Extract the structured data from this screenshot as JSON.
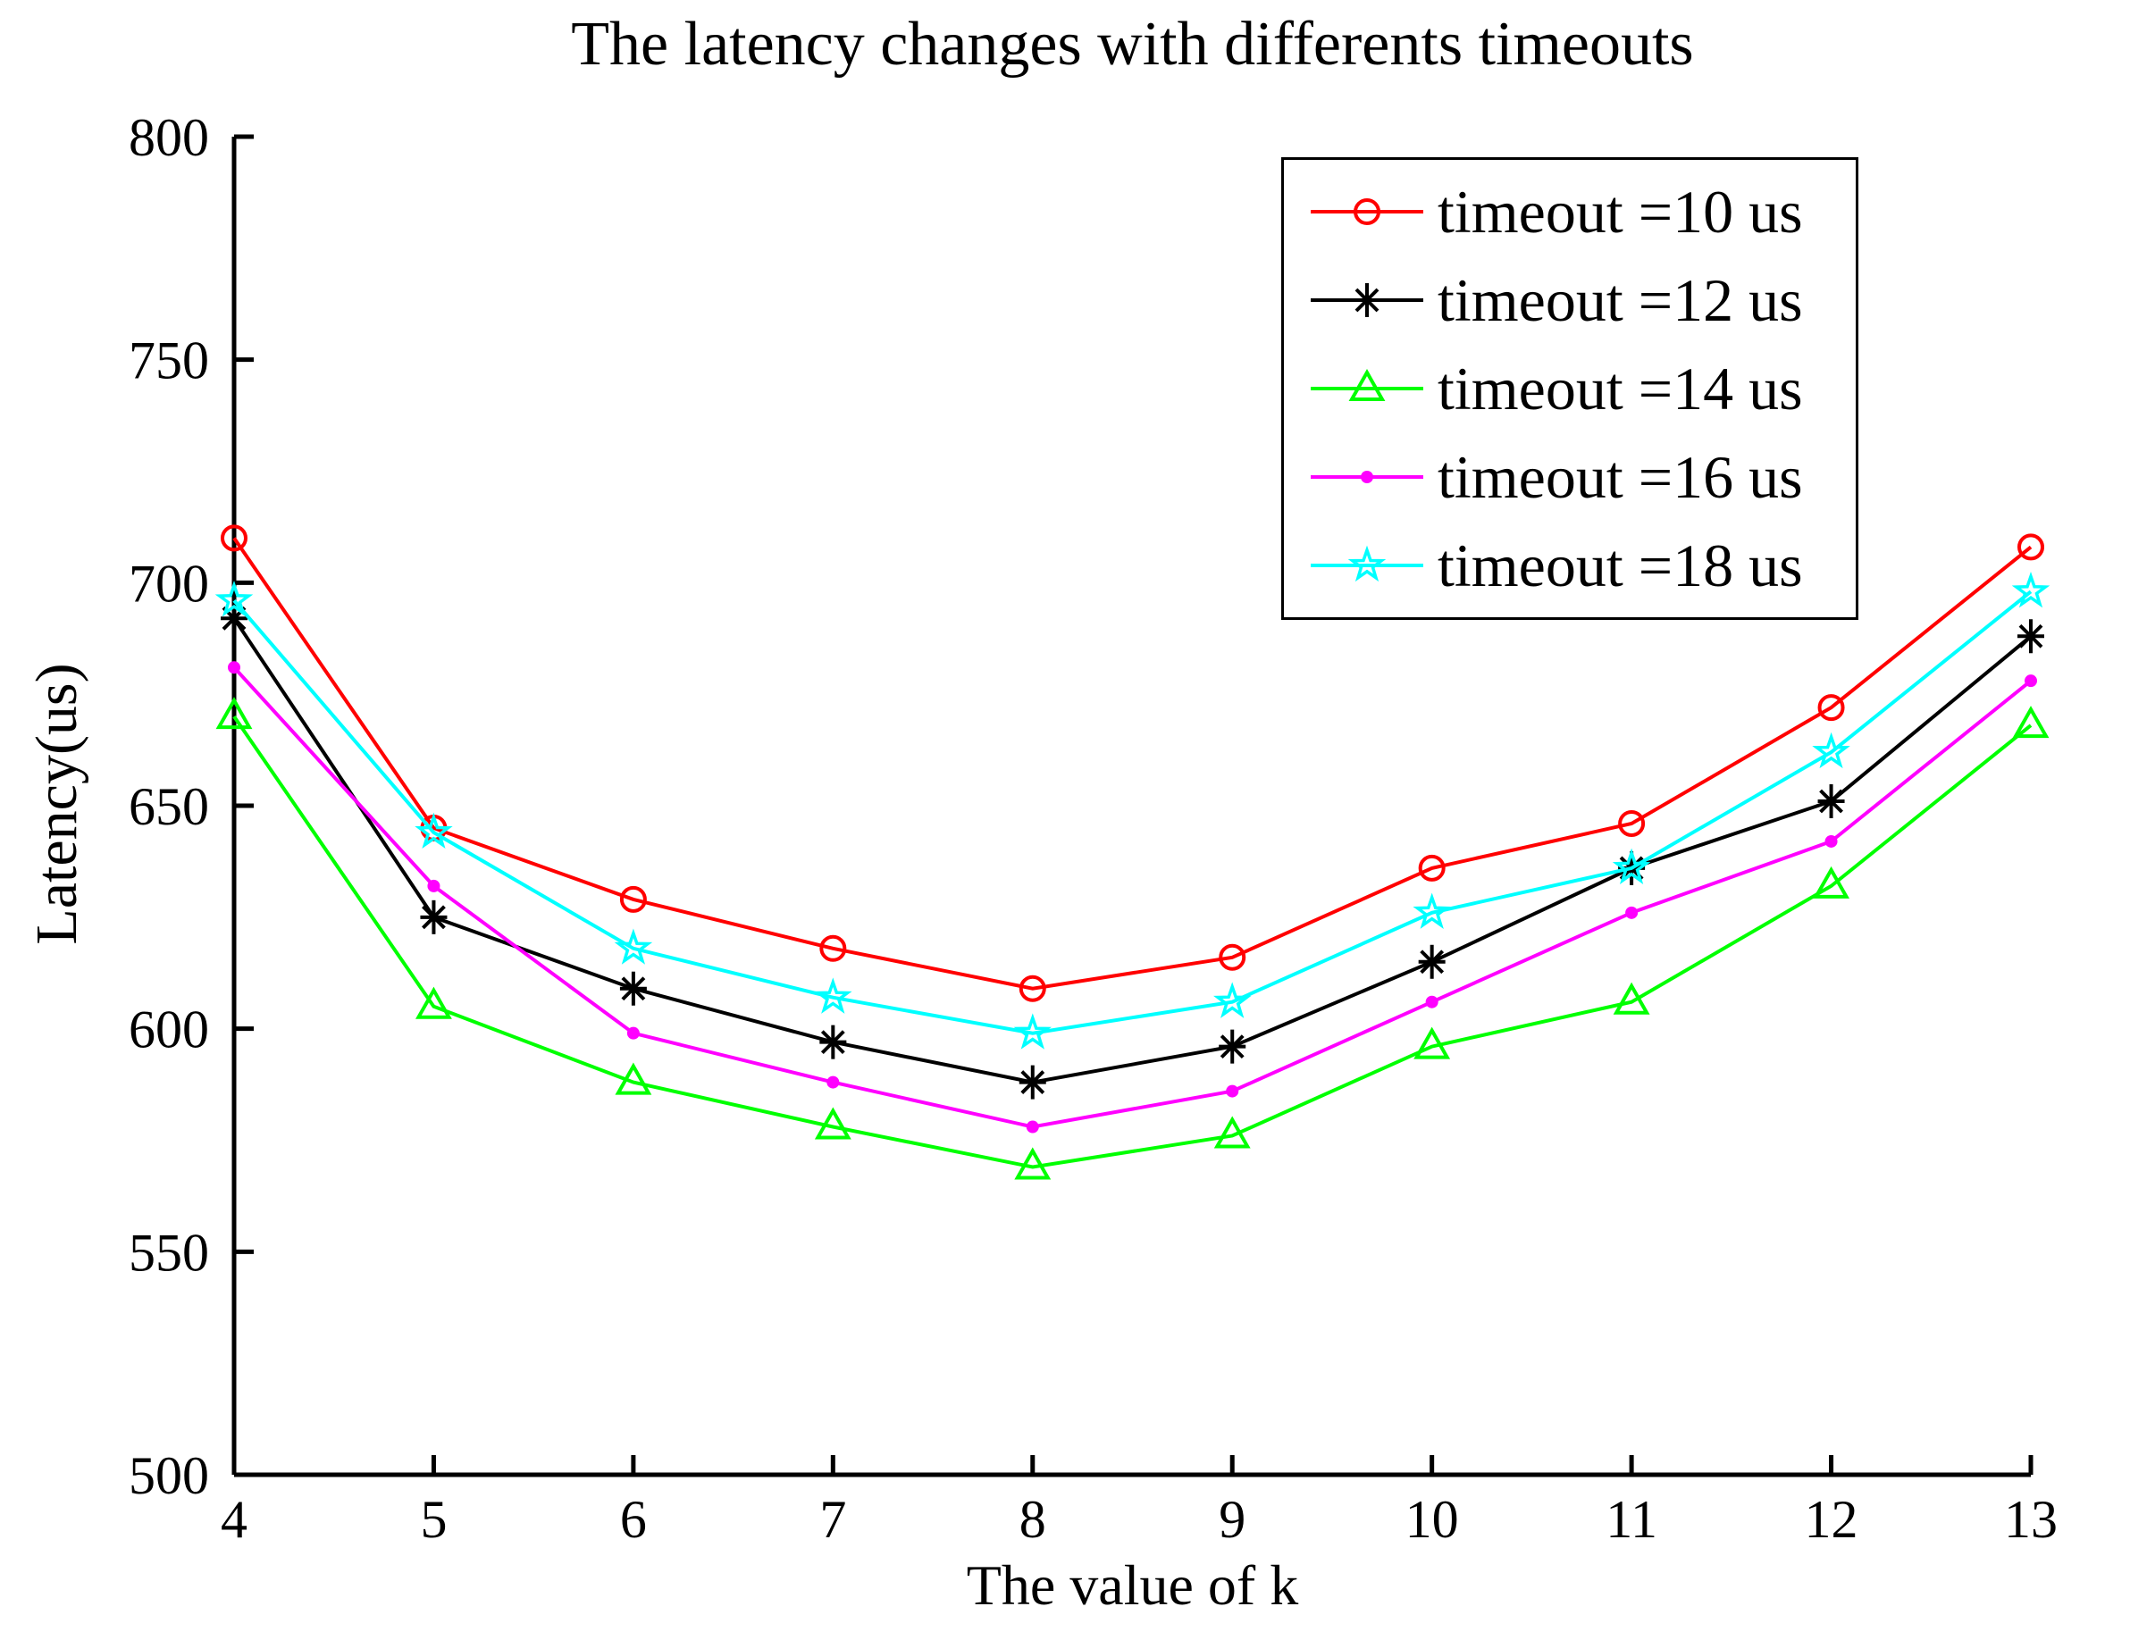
{
  "figure": {
    "title": "The latency changes with differents timeouts",
    "xlabel": "The value of k",
    "ylabel": "Latency(us)"
  },
  "chart_data": {
    "type": "line",
    "title": "The latency changes with differents timeouts",
    "xlabel": "The value of k",
    "ylabel": "Latency(us)",
    "x": [
      4,
      5,
      6,
      7,
      8,
      9,
      10,
      11,
      12,
      13
    ],
    "xlim": [
      4,
      13
    ],
    "ylim": [
      500,
      800
    ],
    "xticks": [
      4,
      5,
      6,
      7,
      8,
      9,
      10,
      11,
      12,
      13
    ],
    "yticks": [
      500,
      550,
      600,
      650,
      700,
      750,
      800
    ],
    "grid": false,
    "box": false,
    "legend_position": "top-right",
    "axis_color": "#000000",
    "series": [
      {
        "name": "timeout =10 us",
        "color": "#ff0000",
        "marker": "circle",
        "values": [
          710,
          645,
          629,
          618,
          609,
          616,
          636,
          646,
          672,
          708
        ]
      },
      {
        "name": "timeout =12 us",
        "color": "#000000",
        "marker": "asterisk",
        "values": [
          692,
          625,
          609,
          597,
          588,
          596,
          615,
          636,
          651,
          688
        ]
      },
      {
        "name": "timeout =14 us",
        "color": "#00ff00",
        "marker": "triangle",
        "values": [
          670,
          605,
          588,
          578,
          569,
          576,
          596,
          606,
          632,
          668
        ]
      },
      {
        "name": "timeout =16 us",
        "color": "#ff00ff",
        "marker": "dot",
        "values": [
          681,
          632,
          599,
          588,
          578,
          586,
          606,
          626,
          642,
          678
        ]
      },
      {
        "name": "timeout =18 us",
        "color": "#00ffff",
        "marker": "pentagram",
        "values": [
          696,
          644,
          618,
          607,
          599,
          606,
          626,
          636,
          662,
          698
        ]
      }
    ]
  }
}
